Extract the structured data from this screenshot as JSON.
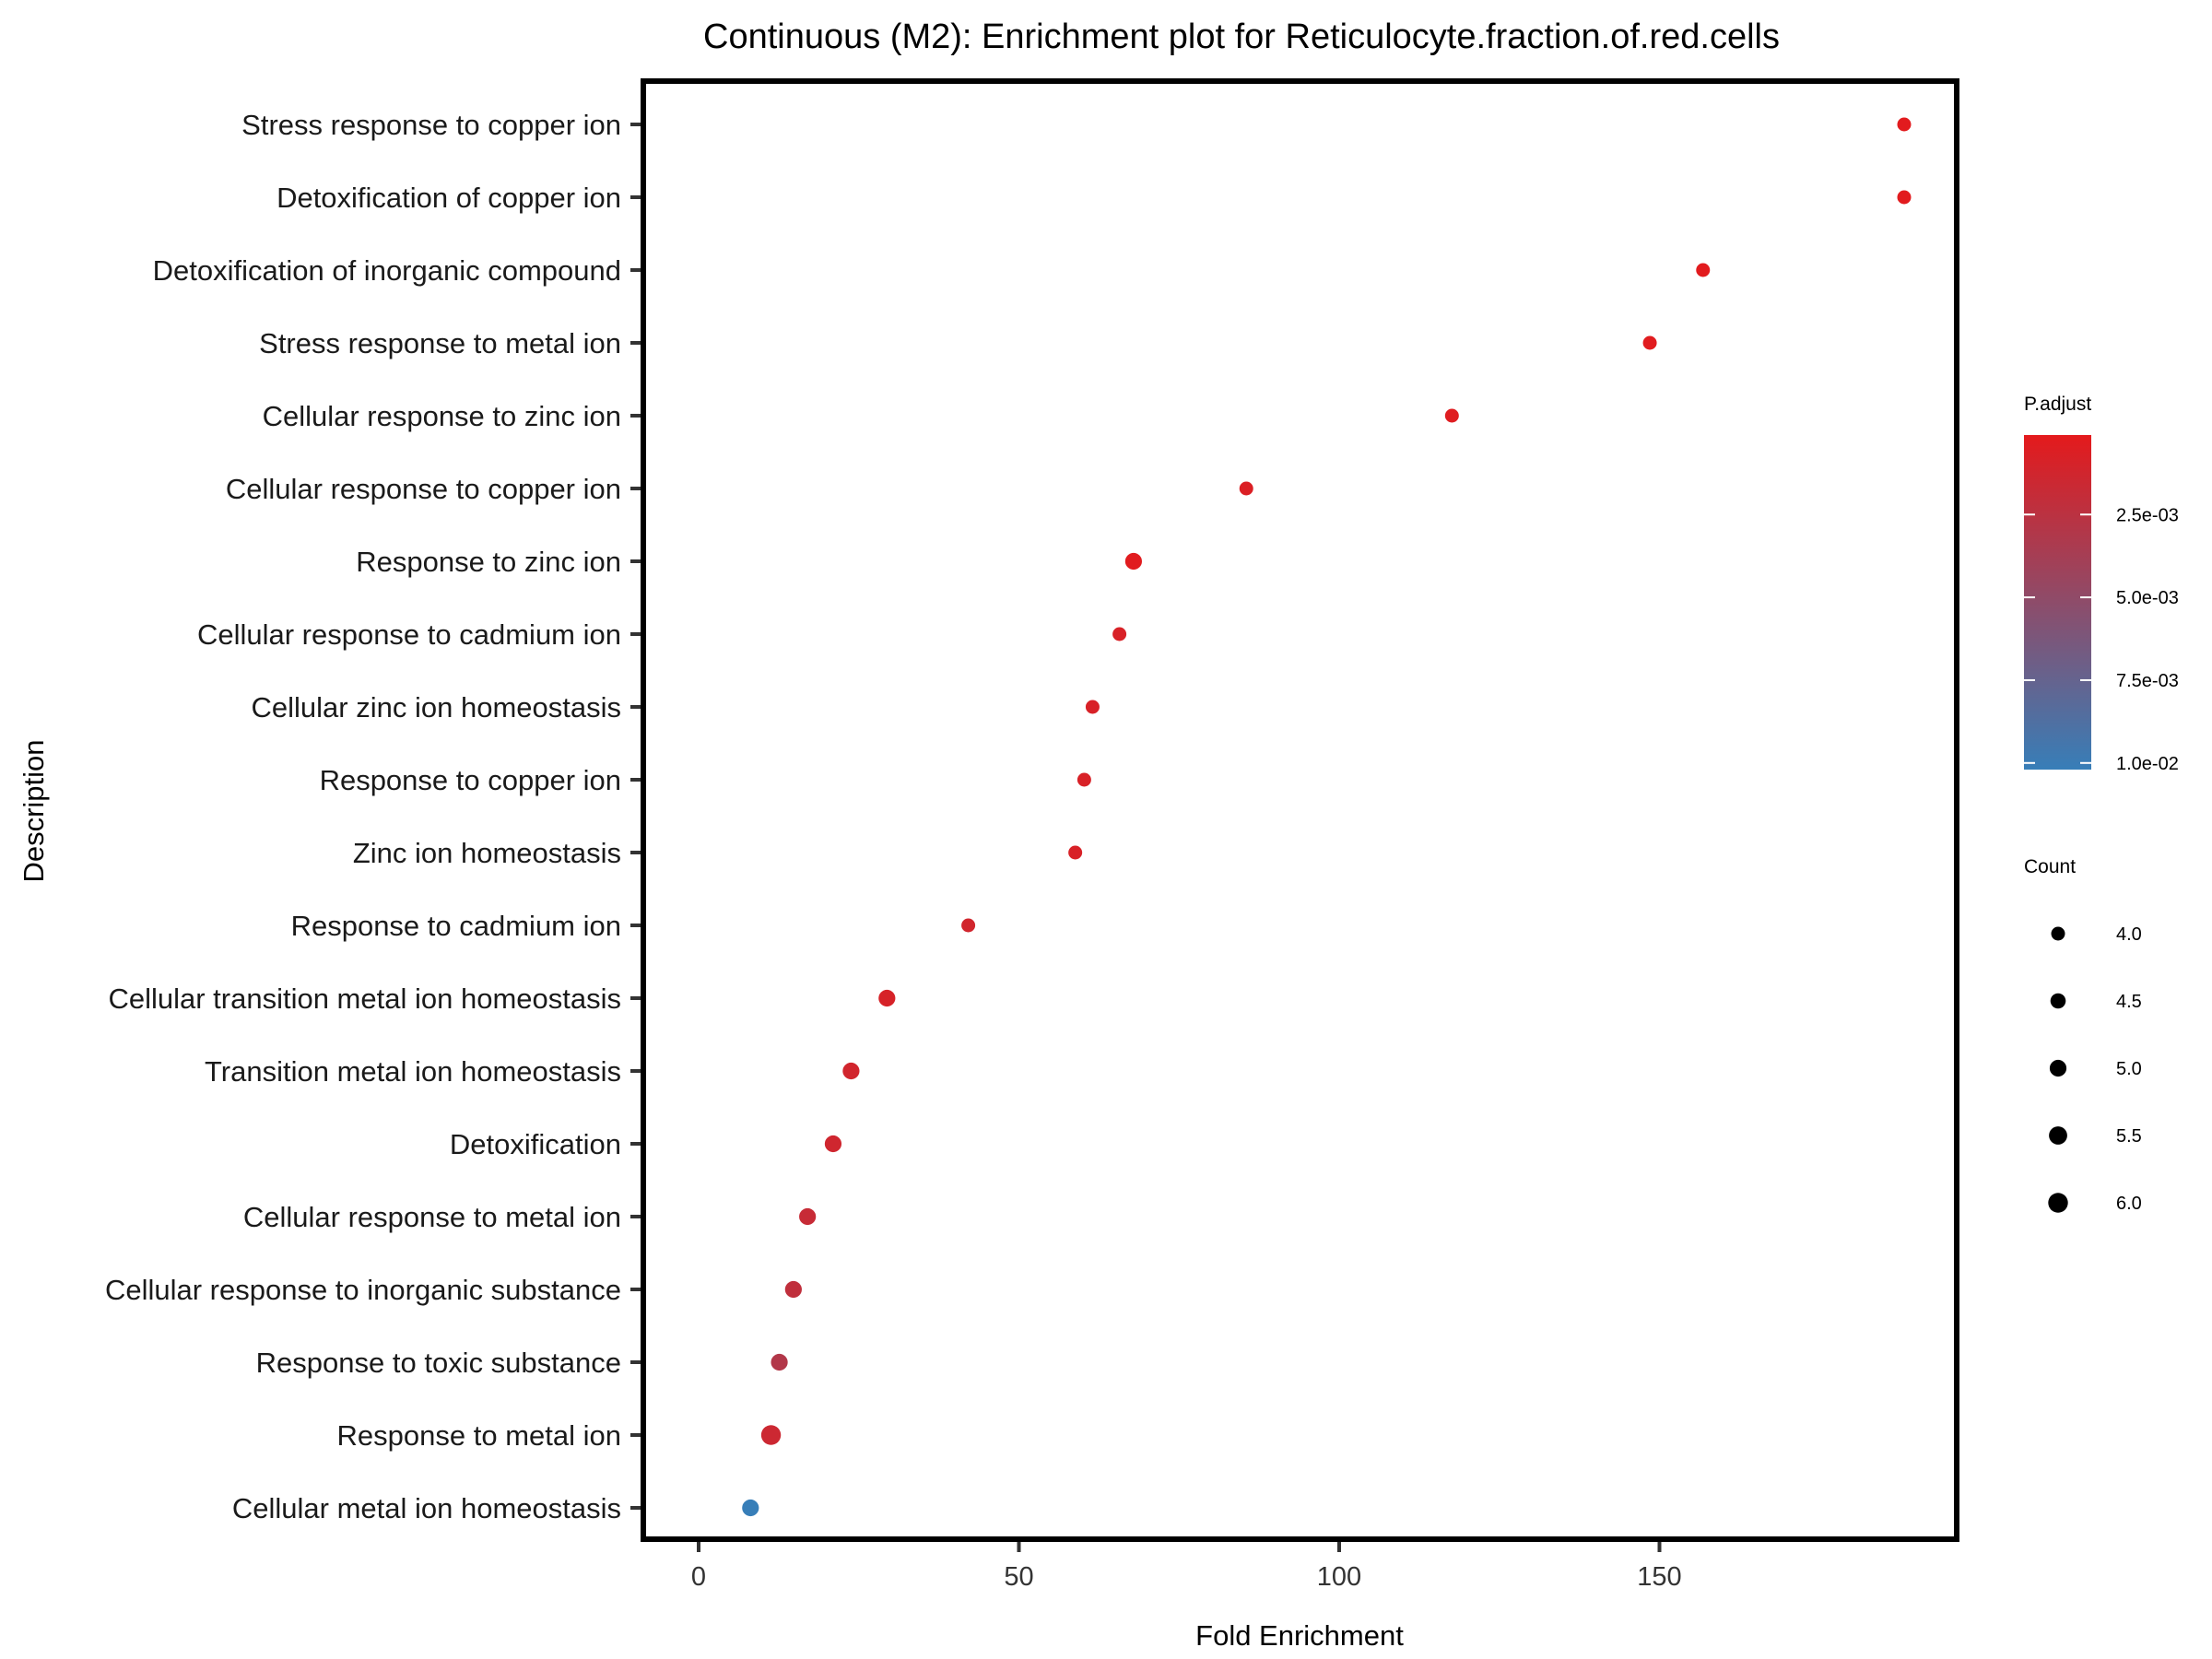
{
  "chart_data": {
    "type": "scatter",
    "title": "Continuous (M2): Enrichment plot for Reticulocyte.fraction.of.red.cells",
    "xlabel": "Fold Enrichment",
    "ylabel": "Description",
    "xlim": [
      -8.5,
      197.5
    ],
    "xticks": [
      0,
      50,
      100,
      150
    ],
    "grid": false,
    "legend_position": "right",
    "color_scale": {
      "title": "P.adjust",
      "low_color": "#e41a1c",
      "high_color": "#377eb8",
      "range": [
        0.0001,
        0.0102
      ],
      "ticks": [
        0.0025,
        0.005,
        0.0075,
        0.01
      ],
      "tick_labels": [
        "2.5e-03",
        "5.0e-03",
        "7.5e-03",
        "1.0e-02"
      ]
    },
    "size_scale": {
      "title": "Count",
      "values": [
        4.0,
        4.5,
        5.0,
        5.5,
        6.0
      ],
      "labels": [
        "4.0",
        "4.5",
        "5.0",
        "5.5",
        "6.0"
      ]
    },
    "points": [
      {
        "description": "Stress response to copper ion",
        "fold_enrichment": 188.2,
        "count": 4,
        "p_adjust": 0.0002
      },
      {
        "description": "Detoxification of copper ion",
        "fold_enrichment": 188.2,
        "count": 4,
        "p_adjust": 0.0002
      },
      {
        "description": "Detoxification of inorganic compound",
        "fold_enrichment": 156.8,
        "count": 4,
        "p_adjust": 0.0002
      },
      {
        "description": "Stress response to metal ion",
        "fold_enrichment": 148.5,
        "count": 4,
        "p_adjust": 0.0003
      },
      {
        "description": "Cellular response to zinc ion",
        "fold_enrichment": 117.6,
        "count": 4,
        "p_adjust": 0.0004
      },
      {
        "description": "Cellular response to copper ion",
        "fold_enrichment": 85.5,
        "count": 4,
        "p_adjust": 0.0006
      },
      {
        "description": "Response to zinc ion",
        "fold_enrichment": 67.9,
        "count": 5,
        "p_adjust": 0.0003
      },
      {
        "description": "Cellular response to cadmium ion",
        "fold_enrichment": 65.7,
        "count": 4,
        "p_adjust": 0.0008
      },
      {
        "description": "Cellular zinc ion homeostasis",
        "fold_enrichment": 61.5,
        "count": 4,
        "p_adjust": 0.0008
      },
      {
        "description": "Response to copper ion",
        "fold_enrichment": 60.2,
        "count": 4,
        "p_adjust": 0.0008
      },
      {
        "description": "Zinc ion homeostasis",
        "fold_enrichment": 58.8,
        "count": 4,
        "p_adjust": 0.0008
      },
      {
        "description": "Response to cadmium ion",
        "fold_enrichment": 42.1,
        "count": 4,
        "p_adjust": 0.0012
      },
      {
        "description": "Cellular transition metal ion homeostasis",
        "fold_enrichment": 29.4,
        "count": 5,
        "p_adjust": 0.0009
      },
      {
        "description": "Transition metal ion homeostasis",
        "fold_enrichment": 23.8,
        "count": 5,
        "p_adjust": 0.0012
      },
      {
        "description": "Detoxification",
        "fold_enrichment": 21.0,
        "count": 5,
        "p_adjust": 0.0013
      },
      {
        "description": "Cellular response to metal ion",
        "fold_enrichment": 17.0,
        "count": 5,
        "p_adjust": 0.0018
      },
      {
        "description": "Cellular response to inorganic substance",
        "fold_enrichment": 14.8,
        "count": 5,
        "p_adjust": 0.0022
      },
      {
        "description": "Response to toxic substance",
        "fold_enrichment": 12.6,
        "count": 5,
        "p_adjust": 0.003
      },
      {
        "description": "Response to metal ion",
        "fold_enrichment": 11.3,
        "count": 6,
        "p_adjust": 0.0015
      },
      {
        "description": "Cellular metal ion homeostasis",
        "fold_enrichment": 8.1,
        "count": 5,
        "p_adjust": 0.0102
      }
    ]
  }
}
